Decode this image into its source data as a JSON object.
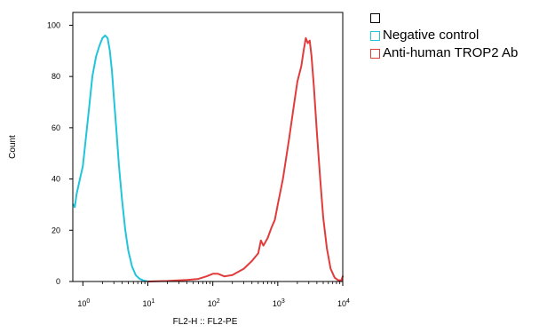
{
  "chart_data": {
    "type": "line",
    "xlabel": "FL2-H :: FL2-PE",
    "ylabel": "Count",
    "x_scale": "log",
    "xlim": [
      0.7,
      10000
    ],
    "ylim": [
      0,
      105
    ],
    "y_ticks": [
      0,
      20,
      40,
      60,
      80,
      100
    ],
    "x_ticks": [
      {
        "value": 1,
        "base": "10",
        "exp": "0"
      },
      {
        "value": 10,
        "base": "10",
        "exp": "1"
      },
      {
        "value": 100,
        "base": "10",
        "exp": "2"
      },
      {
        "value": 1000,
        "base": "10",
        "exp": "3"
      },
      {
        "value": 10000,
        "base": "10",
        "exp": "4"
      }
    ],
    "grid": false,
    "legend_position": "outside-right",
    "series": [
      {
        "name": "Negative control",
        "color": "#22c4dc",
        "points": [
          [
            0.72,
            30
          ],
          [
            0.75,
            29
          ],
          [
            0.8,
            34
          ],
          [
            0.9,
            40
          ],
          [
            1.0,
            45
          ],
          [
            1.1,
            55
          ],
          [
            1.25,
            68
          ],
          [
            1.4,
            80
          ],
          [
            1.6,
            88
          ],
          [
            1.8,
            92
          ],
          [
            2.0,
            95
          ],
          [
            2.2,
            96
          ],
          [
            2.4,
            95
          ],
          [
            2.6,
            90
          ],
          [
            2.8,
            82
          ],
          [
            3.0,
            72
          ],
          [
            3.3,
            58
          ],
          [
            3.6,
            45
          ],
          [
            4.0,
            32
          ],
          [
            4.5,
            20
          ],
          [
            5.0,
            12
          ],
          [
            5.7,
            6
          ],
          [
            6.5,
            2.5
          ],
          [
            7.5,
            1
          ],
          [
            8.5,
            0.4
          ],
          [
            10,
            0
          ]
        ]
      },
      {
        "name": "Anti-human TROP2 Ab",
        "color": "#e03c3c",
        "points": [
          [
            10,
            0
          ],
          [
            20,
            0.2
          ],
          [
            40,
            0.6
          ],
          [
            60,
            1.0
          ],
          [
            80,
            2.0
          ],
          [
            100,
            3.0
          ],
          [
            120,
            3.0
          ],
          [
            150,
            2.0
          ],
          [
            200,
            2.5
          ],
          [
            300,
            5.0
          ],
          [
            400,
            8.0
          ],
          [
            500,
            11
          ],
          [
            550,
            16
          ],
          [
            600,
            14
          ],
          [
            700,
            17
          ],
          [
            800,
            21
          ],
          [
            900,
            24
          ],
          [
            1000,
            30
          ],
          [
            1200,
            40
          ],
          [
            1500,
            56
          ],
          [
            1800,
            70
          ],
          [
            2000,
            78
          ],
          [
            2300,
            84
          ],
          [
            2500,
            90
          ],
          [
            2700,
            95
          ],
          [
            2900,
            93
          ],
          [
            3100,
            94
          ],
          [
            3300,
            88
          ],
          [
            3600,
            76
          ],
          [
            4000,
            58
          ],
          [
            4500,
            40
          ],
          [
            5000,
            25
          ],
          [
            5700,
            13
          ],
          [
            6500,
            5
          ],
          [
            7500,
            1.5
          ],
          [
            8500,
            0.5
          ],
          [
            9500,
            0.5
          ],
          [
            10000,
            2
          ]
        ]
      }
    ]
  },
  "legend": {
    "items": [
      {
        "label": "",
        "color": "#000000"
      },
      {
        "label": "Negative control",
        "color": "#22c4dc"
      },
      {
        "label": "Anti-human TROP2 Ab",
        "color": "#e03c3c"
      }
    ]
  }
}
